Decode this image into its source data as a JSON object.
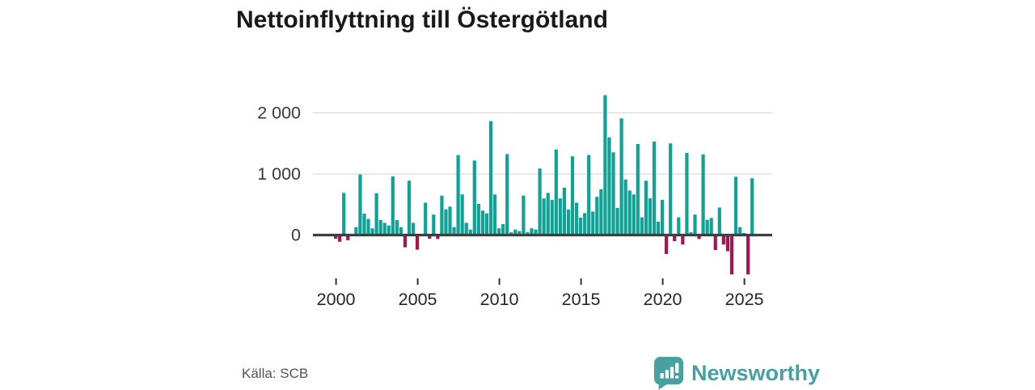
{
  "title": "Nettoinflyttning till Östergötland",
  "source": "Källa: SCB",
  "branding": {
    "name": "Newsworthy",
    "color": "#47a1a1",
    "icon": "newsworthy-chart-bubble-icon"
  },
  "chart_data": {
    "type": "bar",
    "title": "Nettoinflyttning till Östergötland",
    "frequency": "quarterly",
    "start_period": "2000Q1",
    "end_period": "2025Q3",
    "x_tick_labels": [
      "2000",
      "2005",
      "2010",
      "2015",
      "2020",
      "2025"
    ],
    "y_tick_labels": [
      "0",
      "1 000",
      "2 000"
    ],
    "y_ticks": [
      0,
      1000,
      2000
    ],
    "ylim": [
      -800,
      2450
    ],
    "grid": "horizontal",
    "legend": "none",
    "positive_color": "#0fa295",
    "negative_color": "#a21653",
    "axis_color": "#3f3f3f",
    "grid_color": "#dcdcdc",
    "values": [
      -60,
      -110,
      690,
      -85,
      0,
      130,
      990,
      350,
      265,
      110,
      685,
      245,
      200,
      155,
      960,
      245,
      130,
      -200,
      890,
      200,
      -240,
      0,
      530,
      -60,
      335,
      -65,
      645,
      420,
      465,
      130,
      1310,
      665,
      200,
      90,
      1220,
      510,
      400,
      355,
      1865,
      665,
      110,
      180,
      1325,
      45,
      90,
      65,
      645,
      45,
      110,
      90,
      1090,
      600,
      690,
      575,
      1400,
      600,
      775,
      420,
      1290,
      530,
      285,
      360,
      1310,
      385,
      625,
      750,
      2290,
      1600,
      1355,
      445,
      1910,
      910,
      730,
      665,
      1490,
      290,
      890,
      600,
      1530,
      220,
      575,
      -310,
      1500,
      -100,
      290,
      -155,
      1345,
      45,
      335,
      -65,
      1320,
      250,
      280,
      -245,
      450,
      -155,
      -265,
      -645,
      955,
      130,
      35,
      -645,
      930
    ]
  }
}
